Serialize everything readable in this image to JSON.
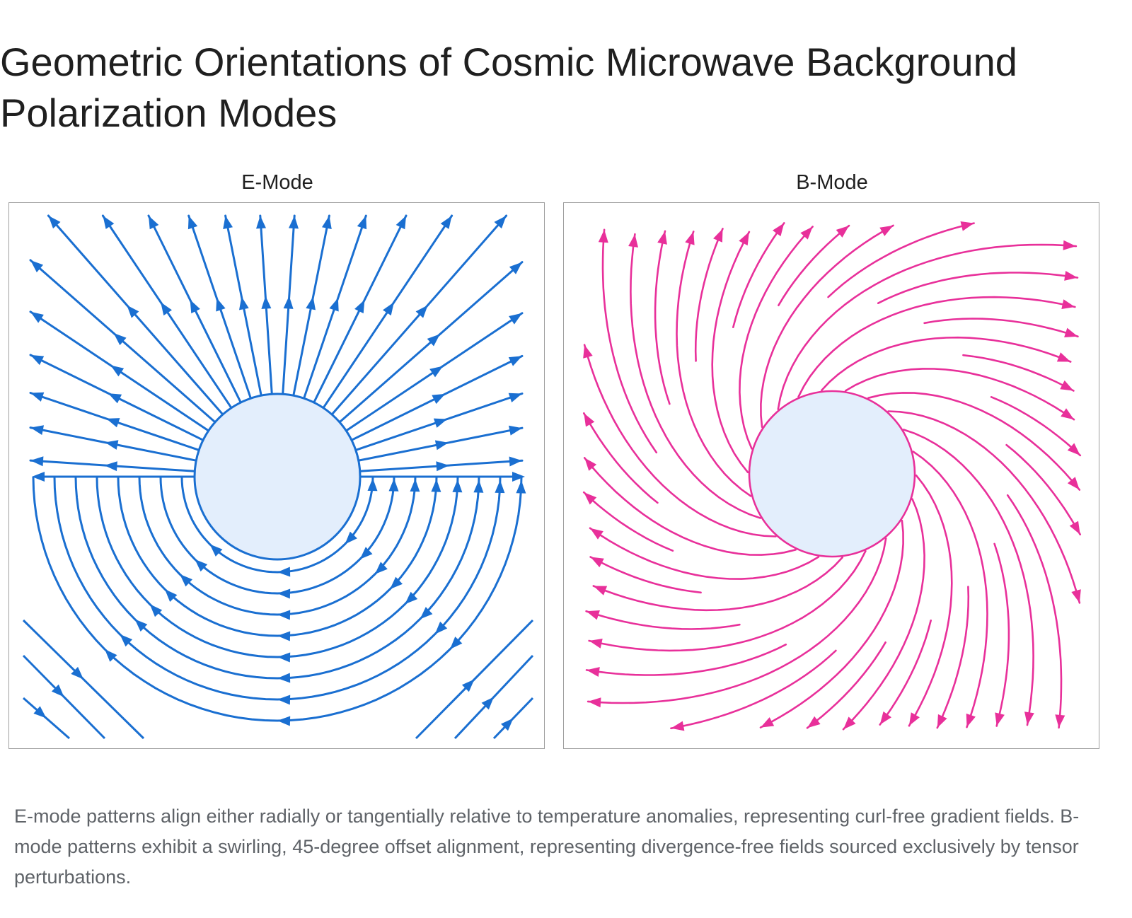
{
  "title": "Geometric Orientations of Cosmic Microwave Background Polarization Modes",
  "panels": {
    "e_mode": {
      "label": "E-Mode",
      "stroke_color": "#1a6fd1",
      "disk_fill": "#e3eefc",
      "disk_stroke": "#1a6fd1"
    },
    "b_mode": {
      "label": "B-Mode",
      "stroke_color": "#e8309a",
      "disk_fill": "#e3eefc",
      "disk_stroke": "#e8309a"
    }
  },
  "caption": "E-mode patterns align either radially or tangentially relative to temperature anomalies, representing curl-free gradient fields. B-mode patterns exhibit a swirling, 45-degree offset alignment, representing divergence-free fields sourced exclusively by tensor perturbations."
}
